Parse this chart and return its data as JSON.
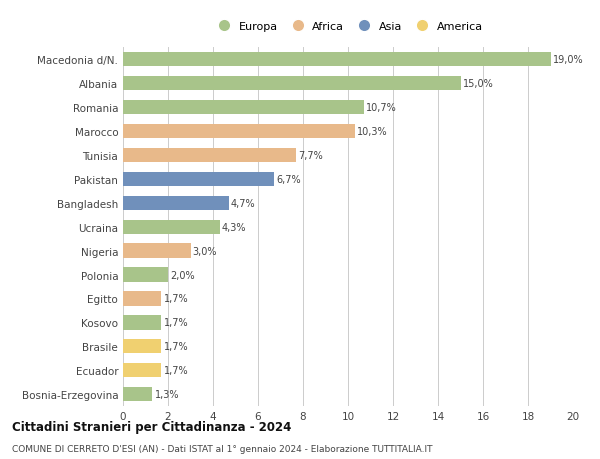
{
  "categories": [
    "Macedonia d/N.",
    "Albania",
    "Romania",
    "Marocco",
    "Tunisia",
    "Pakistan",
    "Bangladesh",
    "Ucraina",
    "Nigeria",
    "Polonia",
    "Egitto",
    "Kosovo",
    "Brasile",
    "Ecuador",
    "Bosnia-Erzegovina"
  ],
  "values": [
    19.0,
    15.0,
    10.7,
    10.3,
    7.7,
    6.7,
    4.7,
    4.3,
    3.0,
    2.0,
    1.7,
    1.7,
    1.7,
    1.7,
    1.3
  ],
  "labels": [
    "19,0%",
    "15,0%",
    "10,7%",
    "10,3%",
    "7,7%",
    "6,7%",
    "4,7%",
    "4,3%",
    "3,0%",
    "2,0%",
    "1,7%",
    "1,7%",
    "1,7%",
    "1,7%",
    "1,3%"
  ],
  "continents": [
    "Europa",
    "Europa",
    "Europa",
    "Africa",
    "Africa",
    "Asia",
    "Asia",
    "Europa",
    "Africa",
    "Europa",
    "Africa",
    "Europa",
    "America",
    "America",
    "Europa"
  ],
  "continent_colors": {
    "Europa": "#a8c48a",
    "Africa": "#e8b98a",
    "Asia": "#7090bb",
    "America": "#f0d070"
  },
  "legend_order": [
    "Europa",
    "Africa",
    "Asia",
    "America"
  ],
  "xlim": [
    0,
    20
  ],
  "xticks": [
    0,
    2,
    4,
    6,
    8,
    10,
    12,
    14,
    16,
    18,
    20
  ],
  "title": "Cittadini Stranieri per Cittadinanza - 2024",
  "subtitle": "COMUNE DI CERRETO D'ESI (AN) - Dati ISTAT al 1° gennaio 2024 - Elaborazione TUTTITALIA.IT",
  "background_color": "#ffffff",
  "grid_color": "#cccccc",
  "bar_height": 0.6
}
